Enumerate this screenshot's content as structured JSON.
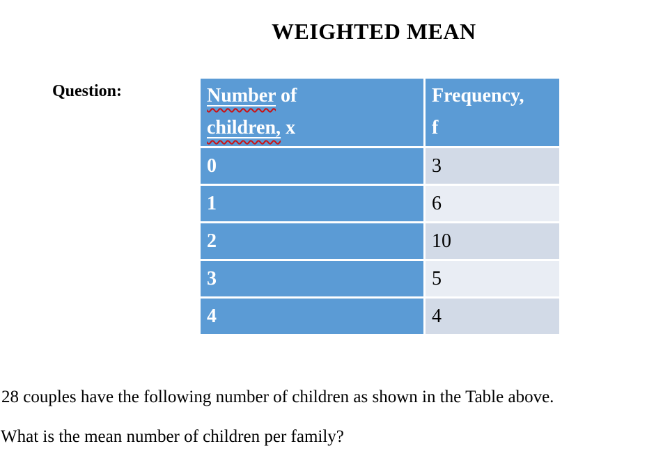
{
  "slide": {
    "title": "WEIGHTED MEAN",
    "question_label": "Question:",
    "table": {
      "header": {
        "col1": {
          "line1_flagged": "Number",
          "line1_rest": " of",
          "line2_flagged": "children,",
          "line2_rest": " x"
        },
        "col2": {
          "line1": "Frequency,",
          "line2": "f"
        }
      },
      "rows": [
        {
          "x": "0",
          "f": "3"
        },
        {
          "x": "1",
          "f": "6"
        },
        {
          "x": "2",
          "f": "10"
        },
        {
          "x": "3",
          "f": "5"
        },
        {
          "x": "4",
          "f": "4"
        }
      ]
    },
    "body": {
      "line1": "28 couples have the following number of children as shown in the Table above.",
      "line2": "What is the mean number of children per family?"
    },
    "colors": {
      "accent_blue": "#5B9BD5",
      "band_dark": "#D2DAE7",
      "band_light": "#E9EDF4",
      "spellcheck_red": "#CC1111",
      "header_text": "#FFFFFF",
      "body_text": "#000000",
      "grid_line": "#FFFFFF"
    }
  }
}
